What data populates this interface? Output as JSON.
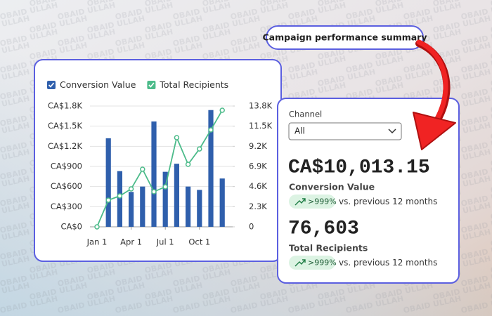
{
  "watermark": "OBAID ULLAH",
  "title": "Campaign performance summary",
  "filter": {
    "label": "Channel",
    "selected": "All"
  },
  "kpis": [
    {
      "value": "CA$10,013.15",
      "label": "Conversion Value",
      "change": ">999%",
      "comparison": "vs. previous 12 months"
    },
    {
      "value": "76,603",
      "label": "Total Recipients",
      "change": ">999%",
      "comparison": "vs. previous 12 months"
    }
  ],
  "chart_data": {
    "type": "bar",
    "categories": [
      "Jan 1",
      null,
      null,
      "Apr 1",
      null,
      null,
      "Jul 1",
      null,
      null,
      "Oct 1",
      null,
      null
    ],
    "series": [
      {
        "name": "Conversion Value",
        "type": "bar",
        "color": "#2f5fac",
        "values": [
          0,
          1320,
          830,
          520,
          600,
          1570,
          820,
          940,
          600,
          550,
          1740,
          720
        ]
      },
      {
        "name": "Total Recipients",
        "type": "line",
        "axis": "y2",
        "color": "#4cbb8a",
        "values": [
          0,
          3050,
          3530,
          4330,
          6580,
          4010,
          4570,
          10190,
          7140,
          8900,
          11070,
          13320
        ]
      }
    ],
    "ylim": [
      0,
      1800
    ],
    "yticks": [
      {
        "value": 0,
        "label": "CA$0"
      },
      {
        "value": 300,
        "label": "CA$300"
      },
      {
        "value": 600,
        "label": "CA$600"
      },
      {
        "value": 900,
        "label": "CA$900"
      },
      {
        "value": 1200,
        "label": "CA$1.2K"
      },
      {
        "value": 1500,
        "label": "CA$1.5K"
      },
      {
        "value": 1800,
        "label": "CA$1.8K"
      }
    ],
    "y2lim": [
      0,
      13800
    ],
    "y2ticks": [
      0,
      {
        "value": 2300,
        "label": "2.3K"
      },
      {
        "value": 4600,
        "label": "4.6K"
      },
      {
        "value": 6900,
        "label": "6.9K"
      },
      {
        "value": 9200,
        "label": "9.2K"
      },
      {
        "value": 11500,
        "label": "11.5K"
      },
      {
        "value": 13800,
        "label": "13.8K"
      }
    ],
    "grid": true,
    "legend": "top-left"
  }
}
